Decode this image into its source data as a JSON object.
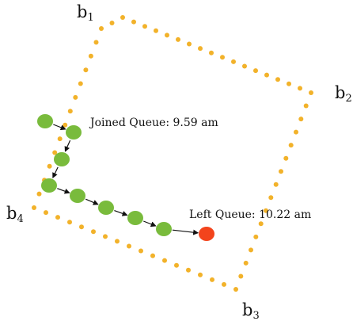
{
  "diagram": {
    "vertices": [
      {
        "name": "b",
        "sub": "1"
      },
      {
        "name": "b",
        "sub": "2"
      },
      {
        "name": "b",
        "sub": "3"
      },
      {
        "name": "b",
        "sub": "4"
      }
    ],
    "annotations": {
      "joined": "Joined Queue: 9.59 am",
      "left": "Left Queue: 10.22 am"
    },
    "colors": {
      "boundary": "#f2b22a",
      "queue_point": "#79bb3c",
      "exit_point": "#f3441c",
      "arrow": "#111111"
    }
  }
}
